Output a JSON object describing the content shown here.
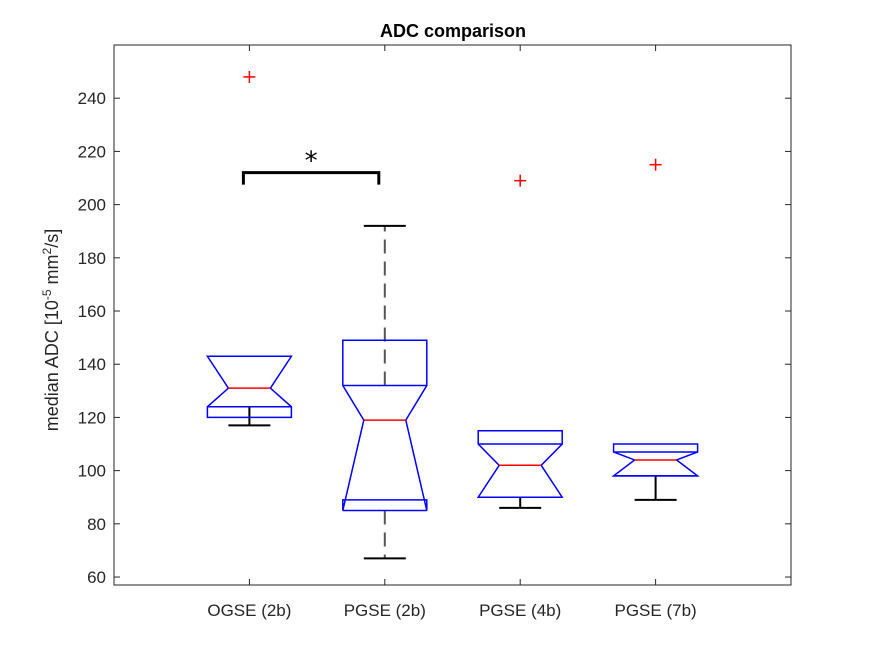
{
  "chart_data": {
    "type": "boxplot",
    "title": "ADC comparison",
    "ylabel_parts": {
      "prefix": "median ADC [10",
      "exp1": "-5",
      "mid": " mm",
      "exp2": "2",
      "suffix": "/s]"
    },
    "xlabel": "",
    "ylim": [
      57,
      260
    ],
    "yticks": [
      60,
      80,
      100,
      120,
      140,
      160,
      180,
      200,
      220,
      240
    ],
    "categories": [
      "OGSE (2b)",
      "PGSE (2b)",
      "PGSE (4b)",
      "PGSE (7b)"
    ],
    "boxes": [
      {
        "name": "OGSE (2b)",
        "whisker_low": 117,
        "q1": 124,
        "median": 131,
        "q3": 143,
        "whisker_high": 143,
        "notch_low": 120,
        "notch_high": 143,
        "outliers": [
          248
        ]
      },
      {
        "name": "PGSE (2b)",
        "whisker_low": 67,
        "q1": 85,
        "median": 119,
        "q3": 132,
        "whisker_high": 192,
        "notch_low": 89,
        "notch_high": 149,
        "outliers": []
      },
      {
        "name": "PGSE (4b)",
        "whisker_low": 86,
        "q1": 90,
        "median": 102,
        "q3": 110,
        "whisker_high": 110,
        "notch_low": 90,
        "notch_high": 115,
        "outliers": [
          209
        ]
      },
      {
        "name": "PGSE (7b)",
        "whisker_low": 89,
        "q1": 98,
        "median": 104,
        "q3": 107,
        "whisker_high": 107,
        "notch_low": 98,
        "notch_high": 110,
        "outliers": [
          215
        ]
      }
    ],
    "significance": {
      "from": "OGSE (2b)",
      "to": "PGSE (2b)",
      "y": 212,
      "label": "*"
    },
    "colors": {
      "box": "#0000ff",
      "median": "#ff0000",
      "whisker": "#000000",
      "whisker_dash": "#555555",
      "outlier": "#ff0000",
      "axis": "#262626"
    }
  }
}
